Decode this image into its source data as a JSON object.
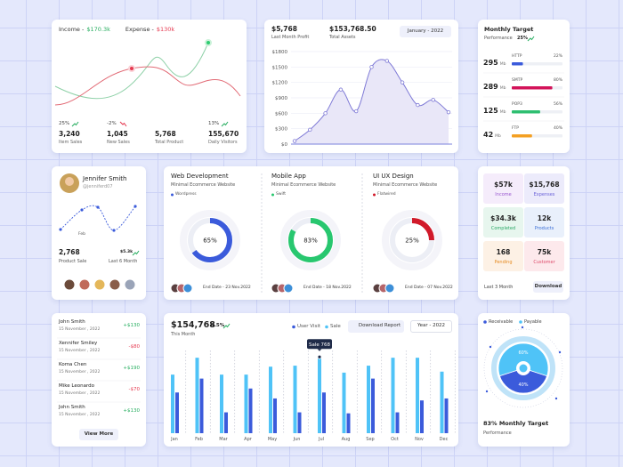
{
  "income": {
    "income_label": "Income -",
    "income_value": "$170.3k",
    "expense_label": "Expense -",
    "expense_value": "$130k",
    "stats": [
      {
        "change": "25%",
        "trend": "up",
        "value": "3,240",
        "label": "Item Sales"
      },
      {
        "change": "-2%",
        "trend": "down",
        "value": "1,045",
        "label": "New Sales"
      },
      {
        "value": "5,768",
        "label": "Total Product"
      },
      {
        "change": "13%",
        "trend": "up",
        "value": "155,670",
        "label": "Daily Visitors"
      }
    ]
  },
  "assets": {
    "profit": "$5,768",
    "profit_label": "Last Month Profit",
    "total": "$153,768.50",
    "total_label": "Total Assets",
    "period": "January - 2022",
    "chart": {
      "type": "line",
      "categories": [
        null,
        null,
        null,
        null,
        null,
        null,
        null,
        null,
        null,
        null,
        null
      ],
      "values": [
        60,
        280,
        600,
        1060,
        640,
        1500,
        1620,
        1200,
        760,
        860,
        620
      ],
      "color": "#7f7ad6",
      "ylim": [
        0,
        1800
      ],
      "yticks": [
        {
          "value": 0,
          "label": "$0"
        },
        {
          "value": 300,
          "label": "$300"
        },
        {
          "value": 600,
          "label": "$600"
        },
        {
          "value": 900,
          "label": "$900"
        },
        {
          "value": 1200,
          "label": "$1200"
        },
        {
          "value": 1500,
          "label": "$1500"
        },
        {
          "value": 1800,
          "label": "$1800"
        }
      ],
      "grid": true
    }
  },
  "target": {
    "title": "Monthly Target",
    "subtitle": "Performance",
    "change": "25%",
    "rows": [
      {
        "size": "295",
        "unit": "Mb",
        "name": "HTTP",
        "value": 22,
        "value_label": "22%",
        "color": "#3b5bdb"
      },
      {
        "size": "289",
        "unit": "Mb",
        "name": "SMTP",
        "value": 80,
        "value_label": "80%",
        "color": "#d3145a"
      },
      {
        "size": "125",
        "unit": "Mb",
        "name": "POP3",
        "value": 56,
        "value_label": "56%",
        "color": "#2fbf71"
      },
      {
        "size": "42",
        "unit": "Mb",
        "name": "FTP",
        "value": 40,
        "value_label": "40%",
        "color": "#f4a023"
      }
    ]
  },
  "profile": {
    "name": "Jennifer Smith",
    "handle": "@jenniferd07",
    "point_label": "Feb",
    "sales": "2,768",
    "sales_label": "Product Sale",
    "growth": "$5.3k",
    "growth_label": "Last 6 Month"
  },
  "projects": [
    {
      "title": "Web Development",
      "subtitle": "Minimal Ecommerce Website",
      "tag": "Wordpress",
      "value": 65,
      "value_label": "65%",
      "color": "#3b5bdb",
      "end_date": "End Date - 23 Nov.2022"
    },
    {
      "title": "Mobile App",
      "subtitle": "Minimal Ecommerce Website",
      "tag": "Swift",
      "value": 83,
      "value_label": "83%",
      "color": "#28c76f",
      "end_date": "End Date - 18 Nov.2022"
    },
    {
      "title": "UI UX Design",
      "subtitle": "Minimal Ecommerce Website",
      "tag": "Flatwired",
      "value": 25,
      "value_label": "25%",
      "color": "#d11a2a",
      "end_date": "End Date - 07 Nov.2022"
    }
  ],
  "summary": {
    "tiles": [
      {
        "value": "$57k",
        "label": "Income",
        "bg": "#f5ecfb",
        "color": "#9b59d0"
      },
      {
        "value": "$15,768",
        "label": "Expenses",
        "bg": "#ecebfb",
        "color": "#6c63d9"
      },
      {
        "value": "$34.3k",
        "label": "Completed",
        "bg": "#e7f6ee",
        "color": "#2aa866"
      },
      {
        "value": "12k",
        "label": "Products",
        "bg": "#e9f0fb",
        "color": "#3b6fd6"
      },
      {
        "value": "168",
        "label": "Pending",
        "bg": "#fdf1e5",
        "color": "#e58a1f"
      },
      {
        "value": "75k",
        "label": "Customer",
        "bg": "#fde9ec",
        "color": "#de4a6a"
      }
    ],
    "period": "Last 3 Month",
    "button": "Download"
  },
  "transactions": {
    "rows": [
      {
        "name": "John Smith",
        "date": "15 November , 2022",
        "amount": "+$130",
        "color": "#27ae60"
      },
      {
        "name": "Xennifer Smiley",
        "date": "15 November , 2022",
        "amount": "-$80",
        "color": "#e53950"
      },
      {
        "name": "Koma Chen",
        "date": "15 November , 2022",
        "amount": "+$190",
        "color": "#27ae60"
      },
      {
        "name": "Mike Leonardo",
        "date": "15 November , 2022",
        "amount": "-$70",
        "color": "#e53950"
      },
      {
        "name": "John Smith",
        "date": "15 November , 2022",
        "amount": "+$130",
        "color": "#27ae60"
      }
    ],
    "button": "View More"
  },
  "sales": {
    "total": "$154,768",
    "change": "4.5%",
    "subtitle": "This Month",
    "button": "Download Report",
    "period": "Year - 2022",
    "tooltip": "Sale 768",
    "chart": {
      "type": "bar",
      "categories": [
        "Jan",
        "Feb",
        "Mar",
        "Apr",
        "May",
        "Jun",
        "Jul",
        "Aug",
        "Sep",
        "Oct",
        "Nov",
        "Dec"
      ],
      "series": [
        {
          "name": "User Visit",
          "color": "#3b5bdb",
          "values": [
            410,
            550,
            210,
            450,
            350,
            210,
            410,
            200,
            550,
            210,
            330,
            350
          ]
        },
        {
          "name": "Sale",
          "color": "#4fc3f7",
          "values": [
            590,
            760,
            590,
            590,
            670,
            680,
            768,
            610,
            680,
            760,
            760,
            620
          ]
        }
      ],
      "ylim": [
        0,
        860
      ]
    }
  },
  "receivable": {
    "chart": {
      "type": "pie",
      "categories": [
        "Receivable",
        "Payable"
      ],
      "values": [
        40,
        60
      ],
      "value_labels": [
        "40%",
        "60%"
      ],
      "colors": [
        "#3b5bdb",
        "#4fc3f7"
      ]
    },
    "target": "83% Monthly Target",
    "subtitle": "Performance"
  }
}
